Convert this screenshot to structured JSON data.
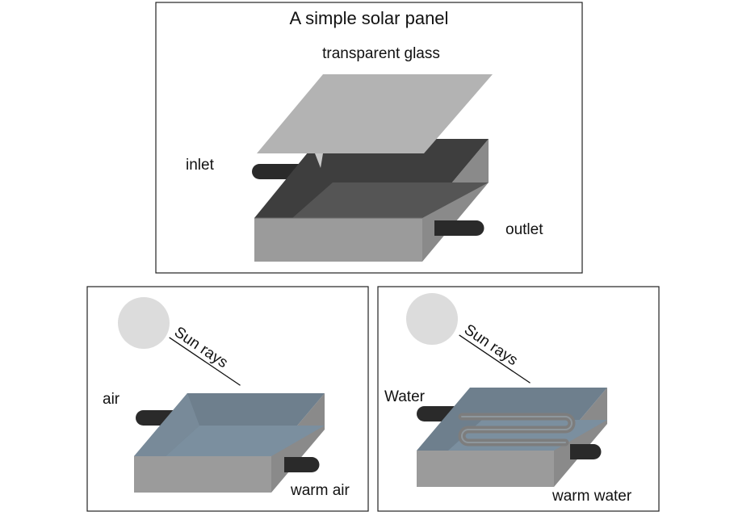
{
  "top_panel": {
    "title": "A simple solar panel",
    "glass_label": "transparent glass",
    "inlet_label": "inlet",
    "outlet_label": "outlet"
  },
  "left_panel": {
    "sun_label": "Sun rays",
    "in_label": "air",
    "out_label": "warm air"
  },
  "right_panel": {
    "sun_label": "Sun rays",
    "in_label": "Water",
    "out_label": "warm water"
  },
  "colors": {
    "frame": "#222222",
    "box_side": "#8c8c8c",
    "box_front": "#9a9a9a",
    "box_dark_inner": "#454545",
    "box_dark_floor": "#5a5a5a",
    "glass": "#b3b3b3",
    "pipe": "#2a2a2a",
    "sun": "#dcdcdc",
    "blue_tint": "#6e8496"
  }
}
